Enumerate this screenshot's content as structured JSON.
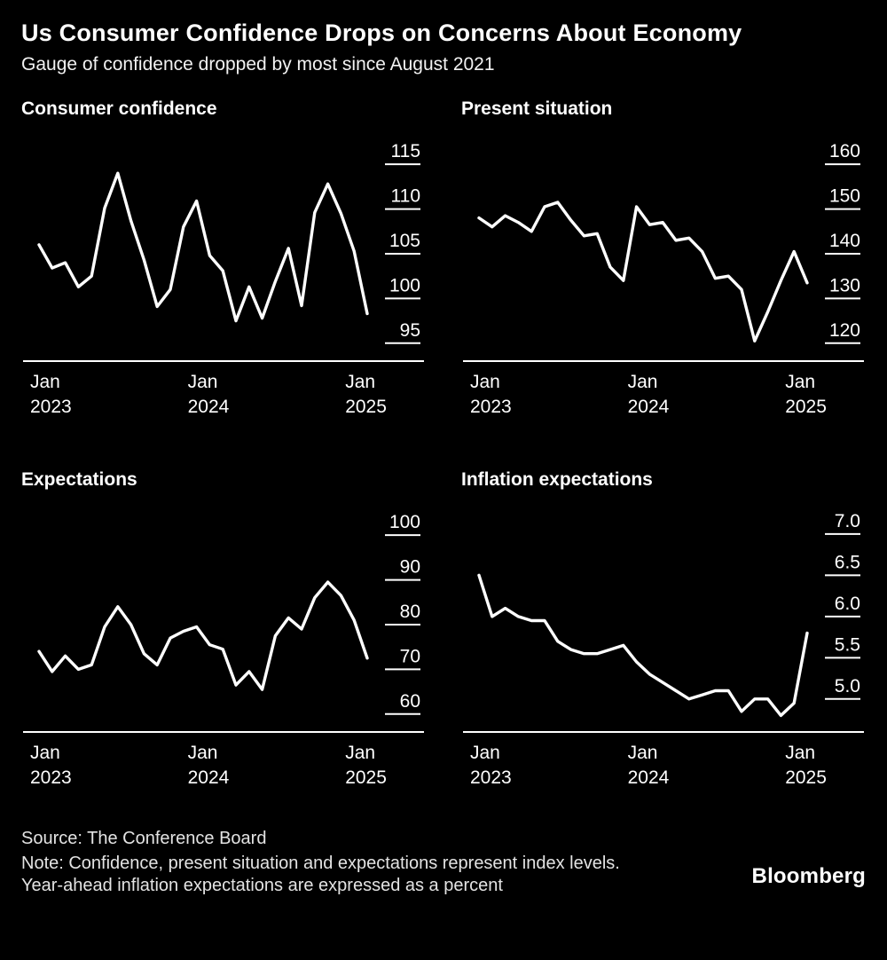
{
  "header": {
    "title": "Us Consumer Confidence Drops on Concerns About Economy",
    "subtitle": "Gauge of confidence dropped by most since August 2021"
  },
  "footer": {
    "source": "Source: The Conference Board",
    "note": "Note: Confidence, present situation and expectations represent index levels. Year-ahead inflation expectations are expressed as a percent",
    "brand": "Bloomberg"
  },
  "colors": {
    "background": "#000000",
    "line": "#ffffff",
    "text": "#ffffff"
  },
  "chart_data": [
    {
      "type": "line",
      "title": "Consumer confidence",
      "x_range": {
        "start": "Jan 2023",
        "end": "Feb 2025",
        "frequency": "monthly"
      },
      "values": [
        106.0,
        103.4,
        104.0,
        101.3,
        102.5,
        110.1,
        114.0,
        108.7,
        104.3,
        99.1,
        101.0,
        108.0,
        110.9,
        104.8,
        103.1,
        97.5,
        101.3,
        97.8,
        101.9,
        105.6,
        99.2,
        109.6,
        112.8,
        109.5,
        105.3,
        98.3
      ],
      "y_ticks": [
        95,
        100,
        105,
        110,
        115
      ],
      "y_tick_labels": [
        "95",
        "100",
        "105",
        "110",
        "115"
      ],
      "ylim": [
        93,
        116.5
      ],
      "x_tick_indices": [
        0,
        12,
        24
      ],
      "x_tick_labels": [
        [
          "Jan",
          "2023"
        ],
        [
          "Jan",
          "2024"
        ],
        [
          "Jan",
          "2025"
        ]
      ],
      "grid": false,
      "legend": false,
      "axis_side": "right",
      "line_color": "#ffffff"
    },
    {
      "type": "line",
      "title": "Present situation",
      "x_range": {
        "start": "Jan 2023",
        "end": "Feb 2025",
        "frequency": "monthly"
      },
      "values": [
        148.0,
        146.0,
        148.5,
        147.0,
        145.0,
        150.5,
        151.5,
        147.5,
        144.0,
        144.5,
        137.0,
        134.0,
        150.5,
        146.5,
        147.0,
        143.0,
        143.5,
        140.5,
        134.5,
        135.0,
        132.0,
        120.5,
        127.0,
        134.0,
        140.5,
        133.5
      ],
      "y_ticks": [
        120,
        130,
        140,
        150,
        160
      ],
      "y_tick_labels": [
        "120",
        "130",
        "140",
        "150",
        "160"
      ],
      "ylim": [
        116,
        163
      ],
      "x_tick_indices": [
        0,
        12,
        24
      ],
      "x_tick_labels": [
        [
          "Jan",
          "2023"
        ],
        [
          "Jan",
          "2024"
        ],
        [
          "Jan",
          "2025"
        ]
      ],
      "grid": false,
      "legend": false,
      "axis_side": "right",
      "line_color": "#ffffff"
    },
    {
      "type": "line",
      "title": "Expectations",
      "x_range": {
        "start": "Jan 2023",
        "end": "Feb 2025",
        "frequency": "monthly"
      },
      "values": [
        74.0,
        69.5,
        73.0,
        70.0,
        71.0,
        79.5,
        84.0,
        80.0,
        73.5,
        71.0,
        77.0,
        78.5,
        79.5,
        75.5,
        74.5,
        66.5,
        69.5,
        65.5,
        77.5,
        81.5,
        79.0,
        86.0,
        89.5,
        86.5,
        81.0,
        72.5
      ],
      "y_ticks": [
        60,
        70,
        80,
        90,
        100
      ],
      "y_tick_labels": [
        "60",
        "70",
        "80",
        "90",
        "100"
      ],
      "ylim": [
        56,
        103
      ],
      "x_tick_indices": [
        0,
        12,
        24
      ],
      "x_tick_labels": [
        [
          "Jan",
          "2023"
        ],
        [
          "Jan",
          "2024"
        ],
        [
          "Jan",
          "2025"
        ]
      ],
      "grid": false,
      "legend": false,
      "axis_side": "right",
      "line_color": "#ffffff"
    },
    {
      "type": "line",
      "title": "Inflation expectations",
      "x_range": {
        "start": "Jan 2023",
        "end": "Feb 2025",
        "frequency": "monthly"
      },
      "values": [
        6.5,
        6.0,
        6.1,
        6.0,
        5.95,
        5.95,
        5.7,
        5.6,
        5.55,
        5.55,
        5.6,
        5.65,
        5.45,
        5.3,
        5.2,
        5.1,
        5.0,
        5.05,
        5.1,
        5.1,
        4.85,
        5.0,
        5.0,
        4.8,
        4.95,
        5.8
      ],
      "y_ticks": [
        5.0,
        5.5,
        6.0,
        6.5,
        7.0
      ],
      "y_tick_labels": [
        "5.0",
        "5.5",
        "6.0",
        "6.5",
        "7.0"
      ],
      "ylim": [
        4.6,
        7.15
      ],
      "x_tick_indices": [
        0,
        12,
        24
      ],
      "x_tick_labels": [
        [
          "Jan",
          "2023"
        ],
        [
          "Jan",
          "2024"
        ],
        [
          "Jan",
          "2025"
        ]
      ],
      "grid": false,
      "legend": false,
      "axis_side": "right",
      "line_color": "#ffffff"
    }
  ]
}
